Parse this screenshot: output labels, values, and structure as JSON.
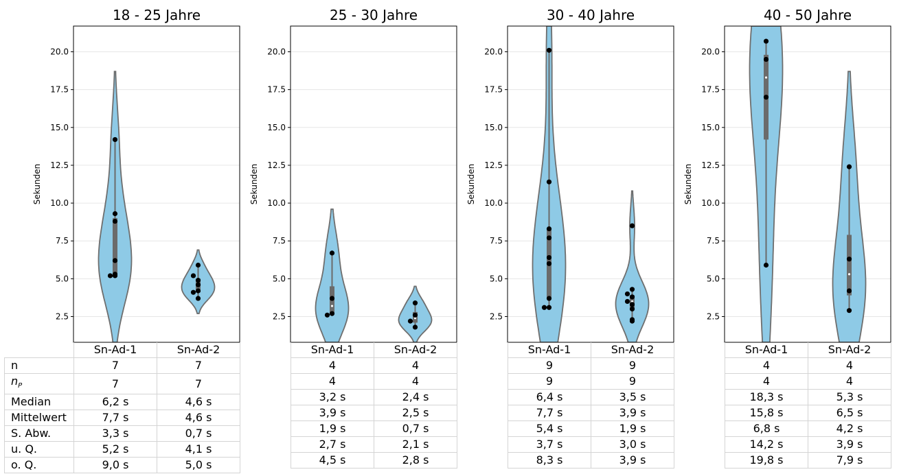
{
  "chart_data": {
    "type": "violin",
    "ylabel": "Sekunden",
    "ylim": [
      0.8,
      21.7
    ],
    "yticks": [
      2.5,
      5.0,
      7.5,
      10.0,
      12.5,
      15.0,
      17.5,
      20.0
    ],
    "ytick_labels": [
      "2.5",
      "5.0",
      "7.5",
      "10.0",
      "12.5",
      "15.0",
      "17.5",
      "20.0"
    ],
    "grid": "y",
    "categories": [
      "Sn-Ad-1",
      "Sn-Ad-2"
    ],
    "violin_color": "#8ecae6",
    "edge_color": "#6e6e6e",
    "point_color": "#000000",
    "row_labels": [
      "n",
      "n_P",
      "Median",
      "Mittelwert",
      "S. Abw.",
      "u. Q.",
      "o. Q."
    ],
    "panels": [
      {
        "title": "18 - 25 Jahre",
        "groups": [
          {
            "name": "Sn-Ad-1",
            "points": [
              5.3,
              5.2,
              5.2,
              6.2,
              8.8,
              9.3,
              14.2
            ],
            "median": 6.2,
            "q1": 5.2,
            "q3": 9.0,
            "wmin": 5.2,
            "wmax": 14.2,
            "violin_min": 0.8,
            "violin_max": 18.7,
            "stats": [
              "7",
              "7",
              "6,2 s",
              "7,7 s",
              "3,3 s",
              "5,2 s",
              "9,0 s"
            ]
          },
          {
            "name": "Sn-Ad-2",
            "points": [
              4.2,
              4.1,
              3.7,
              4.6,
              4.9,
              5.2,
              5.9
            ],
            "median": 4.6,
            "q1": 4.1,
            "q3": 5.0,
            "wmin": 3.7,
            "wmax": 5.9,
            "violin_min": 2.7,
            "violin_max": 6.9,
            "stats": [
              "7",
              "7",
              "4,6 s",
              "4,6 s",
              "0,7 s",
              "4,1 s",
              "5,0 s"
            ]
          }
        ]
      },
      {
        "title": "25 - 30 Jahre",
        "groups": [
          {
            "name": "Sn-Ad-1",
            "points": [
              2.7,
              2.6,
              3.7,
              6.7
            ],
            "median": 3.2,
            "q1": 2.7,
            "q3": 4.5,
            "wmin": 2.6,
            "wmax": 6.7,
            "violin_min": 0.8,
            "violin_max": 9.6,
            "stats": [
              "4",
              "4",
              "3,2 s",
              "3,9 s",
              "1,9 s",
              "2,7 s",
              "4,5 s"
            ]
          },
          {
            "name": "Sn-Ad-2",
            "points": [
              1.8,
              2.2,
              2.6,
              3.4
            ],
            "median": 2.4,
            "q1": 2.1,
            "q3": 2.8,
            "wmin": 1.8,
            "wmax": 3.4,
            "violin_min": 0.8,
            "violin_max": 4.5,
            "stats": [
              "4",
              "4",
              "2,4 s",
              "2,5 s",
              "0,7 s",
              "2,1 s",
              "2,8 s"
            ]
          }
        ]
      },
      {
        "title": "30 - 40 Jahre",
        "groups": [
          {
            "name": "Sn-Ad-1",
            "points": [
              3.1,
              3.1,
              3.7,
              6.0,
              6.4,
              7.7,
              8.3,
              11.4,
              20.1
            ],
            "median": 6.4,
            "q1": 3.7,
            "q3": 8.3,
            "wmin": 3.1,
            "wmax": 20.1,
            "violin_min": 0.8,
            "violin_max": 21.7,
            "stats": [
              "9",
              "9",
              "6,4 s",
              "7,7 s",
              "5,4 s",
              "3,7 s",
              "8,3 s"
            ]
          },
          {
            "name": "Sn-Ad-2",
            "points": [
              2.3,
              2.2,
              3.0,
              3.3,
              3.5,
              3.8,
              4.0,
              4.3,
              8.5
            ],
            "median": 3.5,
            "q1": 3.0,
            "q3": 3.9,
            "wmin": 2.2,
            "wmax": 4.3,
            "violin_min": 0.8,
            "violin_max": 10.8,
            "stats": [
              "9",
              "9",
              "3,5 s",
              "3,9 s",
              "1,9 s",
              "3,0 s",
              "3,9 s"
            ]
          }
        ]
      },
      {
        "title": "40 - 50 Jahre",
        "groups": [
          {
            "name": "Sn-Ad-1",
            "points": [
              5.9,
              17.0,
              19.5,
              20.7
            ],
            "median": 18.3,
            "q1": 14.2,
            "q3": 19.8,
            "wmin": 5.9,
            "wmax": 20.7,
            "violin_min": 0.8,
            "violin_max": 21.7,
            "stats": [
              "4",
              "4",
              "18,3 s",
              "15,8 s",
              "6,8 s",
              "14,2 s",
              "19,8 s"
            ]
          },
          {
            "name": "Sn-Ad-2",
            "points": [
              2.9,
              4.2,
              6.3,
              12.4
            ],
            "median": 5.3,
            "q1": 3.9,
            "q3": 7.9,
            "wmin": 2.9,
            "wmax": 12.4,
            "violin_min": 0.8,
            "violin_max": 18.7,
            "stats": [
              "4",
              "4",
              "5,3 s",
              "6,5 s",
              "4,2 s",
              "3,9 s",
              "7,9 s"
            ]
          }
        ]
      }
    ]
  }
}
